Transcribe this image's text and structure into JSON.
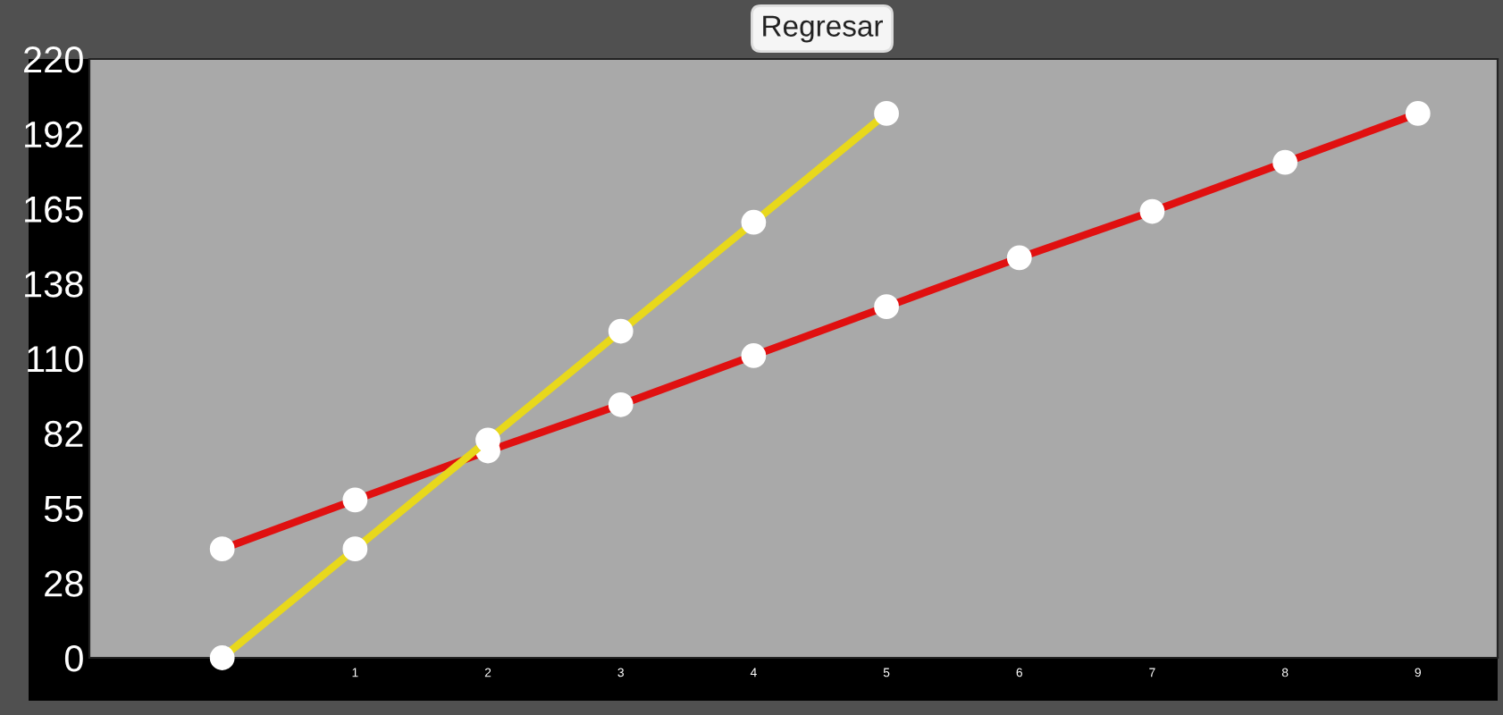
{
  "chart_data": {
    "type": "line",
    "annotations": [
      "Regresar"
    ],
    "x": [
      0,
      1,
      2,
      3,
      4,
      5,
      6,
      7,
      8,
      9
    ],
    "series": [
      {
        "color": "#e8d81c",
        "x": [
          0,
          1,
          2,
          3,
          4,
          5
        ],
        "values": [
          0,
          40,
          80,
          120,
          160,
          200
        ]
      },
      {
        "color": "#e01010",
        "values": [
          40,
          58,
          76,
          93,
          111,
          129,
          147,
          164,
          182,
          200
        ]
      }
    ],
    "xlim": [
      -1,
      9.6
    ],
    "xticks": [
      1,
      2,
      3,
      4,
      5,
      6,
      7,
      8,
      9
    ],
    "ylim": [
      0,
      220
    ],
    "yticks": [
      0,
      {
        "value": 27.5,
        "label": "28"
      },
      55,
      {
        "value": 82.5,
        "label": "82"
      },
      110,
      {
        "value": 137.5,
        "label": "138"
      },
      165,
      {
        "value": 192.5,
        "label": "192"
      },
      220
    ],
    "marker": "circle",
    "line_style": "solid",
    "grid": false,
    "legend": false
  }
}
